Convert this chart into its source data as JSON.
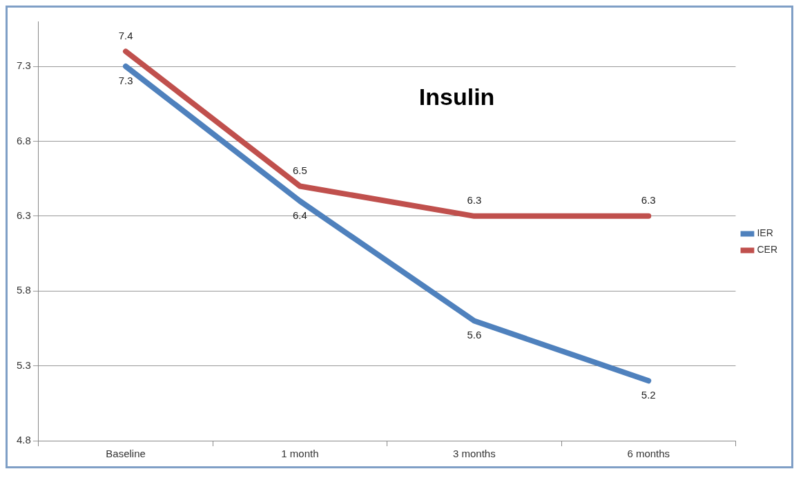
{
  "chart_data": {
    "type": "line",
    "title": "Insulin",
    "categories": [
      "Baseline",
      "1 month",
      "3 months",
      "6 months"
    ],
    "series": [
      {
        "name": "IER",
        "color": "#4f81bd",
        "values": [
          7.3,
          6.4,
          5.6,
          5.2
        ]
      },
      {
        "name": "CER",
        "color": "#c0504d",
        "values": [
          7.4,
          6.5,
          6.3,
          6.3
        ]
      }
    ],
    "ylim": [
      4.8,
      7.6
    ],
    "yticks": [
      4.8,
      5.3,
      5.8,
      6.3,
      6.8,
      7.3
    ],
    "grid": "y",
    "legend": "right",
    "data_labels": true,
    "marker": "none",
    "line_style": "solid"
  }
}
